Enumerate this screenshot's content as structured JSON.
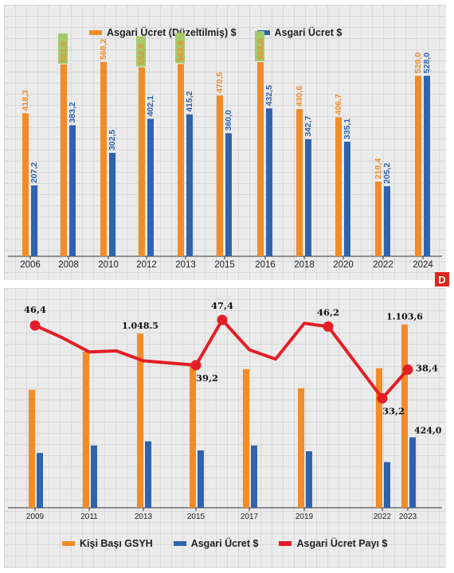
{
  "colors": {
    "orange": "#f28c28",
    "blue": "#2f63ae",
    "red": "#e41e26",
    "highlight": "#a3c96b",
    "axis": "#333333"
  },
  "top_legend": {
    "orange_label": "Asgari Ücret (Düzeltilmiş) $",
    "blue_label": "Asgari Ücret $"
  },
  "bottom_legend": {
    "orange_label": "Kişi Başı GSYH",
    "blue_label": "Asgari Ücret $",
    "red_label": "Asgari Ücret Payı $"
  },
  "logo_text": "D",
  "chart_data": [
    {
      "type": "bar",
      "categories": [
        "2006",
        "2008",
        "2010",
        "2012",
        "2013",
        "2015",
        "2016",
        "2018",
        "2020",
        "2022",
        "2024"
      ],
      "series": [
        {
          "name": "Asgari Ücret (Düzeltilmiş) $",
          "values": [
            418.3,
            561.0,
            568.2,
            552.9,
            562.6,
            470.5,
            568.0,
            430.6,
            406.7,
            218.4,
            528.0
          ],
          "labels": [
            "418,3",
            "561,0",
            "568,2",
            "552,9",
            "562,6",
            "470,5",
            "568,0",
            "430,6",
            "406,7",
            "218,4",
            "528,0"
          ],
          "highlighted": [
            false,
            true,
            false,
            true,
            true,
            false,
            true,
            false,
            false,
            false,
            false
          ]
        },
        {
          "name": "Asgari Ücret $",
          "values": [
            207.2,
            383.2,
            302.5,
            402.1,
            415.2,
            360.0,
            432.5,
            342.7,
            335.1,
            205.2,
            528.0
          ],
          "labels": [
            "207,2",
            "383,2",
            "302,5",
            "402,1",
            "415,2",
            "360,0",
            "432,5",
            "342,7",
            "335,1",
            "205,2",
            "528,0"
          ]
        }
      ],
      "ylim": [
        0,
        610
      ]
    },
    {
      "type": "bar",
      "categories": [
        "2009",
        "2011",
        "2013",
        "2015",
        "2017",
        "2019",
        "2022",
        "2023"
      ],
      "series": [
        {
          "name": "Kişi Başı GSYH",
          "values": [
            710,
            940,
            1048.5,
            870,
            835,
            720,
            840,
            1103.6
          ],
          "labels": [
            "",
            "",
            "1.048.5",
            "",
            "",
            "",
            "",
            "1.103,6"
          ]
        },
        {
          "name": "Asgari Ücret $",
          "values": [
            330,
            375,
            400,
            345,
            375,
            340,
            275,
            424.0
          ],
          "labels": [
            "",
            "",
            "",
            "",
            "",
            "",
            "",
            "424,0"
          ]
        },
        {
          "name": "Asgari Ücret Payı $",
          "type": "line",
          "x": [
            2009,
            2010,
            2011,
            2012,
            2013,
            2015,
            2016,
            2017,
            2018,
            2019,
            2020,
            2022,
            2023
          ],
          "values": [
            46.4,
            44.2,
            41.6,
            41.8,
            40.0,
            39.2,
            47.4,
            42.0,
            40.3,
            46.8,
            46.2,
            33.2,
            38.4
          ],
          "labels": [
            {
              "x": 2009,
              "value": 46.4,
              "text": "46,4"
            },
            {
              "x": 2015,
              "value": 39.2,
              "text": "39,2"
            },
            {
              "x": 2016,
              "value": 47.4,
              "text": "47,4"
            },
            {
              "x": 2020,
              "value": 46.2,
              "text": "46,2"
            },
            {
              "x": 2022,
              "value": 33.2,
              "text": "33,2"
            },
            {
              "x": 2023,
              "value": 38.4,
              "text": "38,4"
            }
          ]
        }
      ],
      "ylim_bars": [
        0,
        1150
      ],
      "ylim_line": [
        20,
        50
      ]
    }
  ]
}
